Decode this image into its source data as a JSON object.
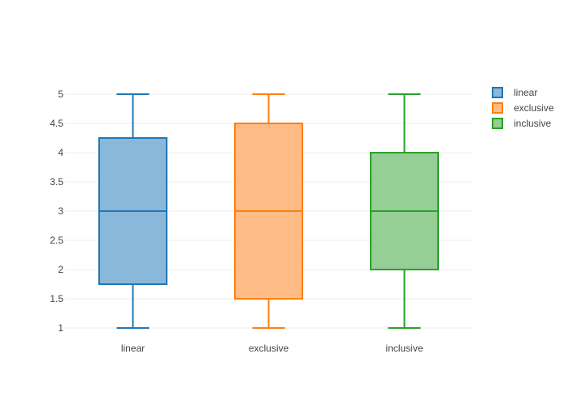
{
  "chart_data": {
    "type": "box",
    "title": "",
    "xlabel": "",
    "ylabel": "",
    "ylim": [
      1,
      5
    ],
    "yticks": [
      1,
      1.5,
      2,
      2.5,
      3,
      3.5,
      4,
      4.5,
      5
    ],
    "ytick_labels": [
      "1",
      "1.5",
      "2",
      "2.5",
      "3",
      "3.5",
      "4",
      "4.5",
      "5"
    ],
    "grid": true,
    "legend_position": "top-right",
    "categories": [
      "linear",
      "exclusive",
      "inclusive"
    ],
    "series": [
      {
        "name": "linear",
        "color": "#1f77b4",
        "fill": "#8ab8da",
        "min": 1,
        "q1": 1.75,
        "median": 3,
        "q3": 4.25,
        "max": 5
      },
      {
        "name": "exclusive",
        "color": "#ff7f0e",
        "fill": "#ffbb86",
        "min": 1,
        "q1": 1.5,
        "median": 3,
        "q3": 4.5,
        "max": 5
      },
      {
        "name": "inclusive",
        "color": "#2ca02c",
        "fill": "#95cf95",
        "min": 1,
        "q1": 2,
        "median": 3,
        "q3": 4,
        "max": 5
      }
    ]
  }
}
